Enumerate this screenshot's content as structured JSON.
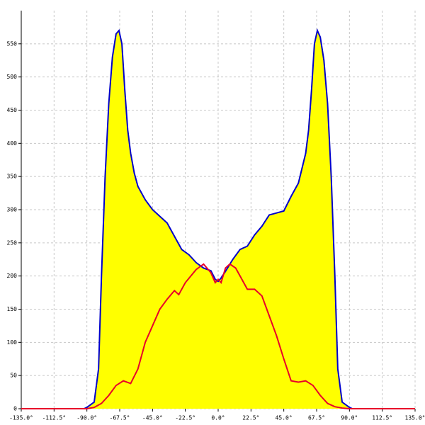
{
  "chart_data": {
    "type": "area-line",
    "xlim": [
      -135,
      135
    ],
    "ylim": [
      0,
      600
    ],
    "grid": true,
    "xticks": [
      {
        "value": -135,
        "label": "-135.0°"
      },
      {
        "value": -112.5,
        "label": "-112.5°"
      },
      {
        "value": -90,
        "label": "-90.0°"
      },
      {
        "value": -67.5,
        "label": "-67.5°"
      },
      {
        "value": -45,
        "label": "-45.0°"
      },
      {
        "value": -22.5,
        "label": "-22.5°"
      },
      {
        "value": 0,
        "label": "0.0°"
      },
      {
        "value": 22.5,
        "label": "22.5°"
      },
      {
        "value": 45,
        "label": "45.0°"
      },
      {
        "value": 67.5,
        "label": "67.5°"
      },
      {
        "value": 90,
        "label": "90.0°"
      },
      {
        "value": 112.5,
        "label": "112.5°"
      },
      {
        "value": 135,
        "label": "135.0°"
      }
    ],
    "yticks": [
      0,
      50,
      100,
      150,
      200,
      250,
      300,
      350,
      400,
      450,
      500,
      550
    ],
    "series": [
      {
        "color": "#0000cc",
        "fill": "#ffff00",
        "x": [
          -92,
          -90,
          -85,
          -82,
          -80,
          -77.5,
          -75,
          -72.5,
          -70,
          -68,
          -66,
          -64,
          -62,
          -60,
          -57.5,
          -55,
          -50,
          -45,
          -40,
          -35,
          -30,
          -25,
          -20,
          -15,
          -10,
          -5,
          -2,
          0,
          2,
          5,
          10,
          15,
          20,
          25,
          30,
          35,
          40,
          45,
          50,
          55,
          60,
          62,
          64,
          66,
          68,
          70,
          72.5,
          75,
          77.5,
          80,
          82,
          85,
          90,
          92
        ],
        "values": [
          0,
          2,
          10,
          60,
          200,
          350,
          460,
          530,
          565,
          570,
          550,
          480,
          420,
          385,
          355,
          335,
          315,
          300,
          290,
          280,
          260,
          240,
          232,
          220,
          212,
          208,
          195,
          192,
          197,
          207,
          225,
          240,
          245,
          262,
          275,
          292,
          295,
          298,
          320,
          340,
          385,
          420,
          480,
          550,
          570,
          560,
          525,
          460,
          350,
          200,
          60,
          10,
          2,
          0
        ]
      },
      {
        "color": "#e8002a",
        "x": [
          -135,
          -90,
          -85,
          -80,
          -75,
          -70,
          -65,
          -60,
          -55,
          -50,
          -45,
          -40,
          -35,
          -30,
          -27,
          -22.5,
          -15,
          -10,
          -5,
          -2,
          0,
          2,
          5,
          8,
          12,
          15,
          20,
          25,
          30,
          35,
          40,
          45,
          50,
          55,
          60,
          65,
          70,
          75,
          80,
          85,
          90,
          135
        ],
        "values": [
          0,
          0,
          2,
          8,
          20,
          35,
          42,
          38,
          60,
          100,
          125,
          150,
          165,
          178,
          172,
          190,
          210,
          218,
          205,
          190,
          195,
          190,
          212,
          218,
          212,
          200,
          180,
          180,
          170,
          140,
          110,
          75,
          42,
          40,
          42,
          35,
          20,
          8,
          3,
          1,
          0,
          0
        ]
      }
    ]
  }
}
